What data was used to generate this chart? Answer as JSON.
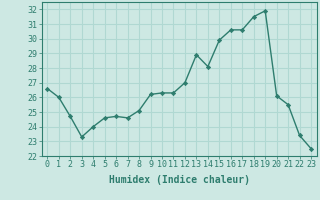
{
  "x": [
    0,
    1,
    2,
    3,
    4,
    5,
    6,
    7,
    8,
    9,
    10,
    11,
    12,
    13,
    14,
    15,
    16,
    17,
    18,
    19,
    20,
    21,
    22,
    23
  ],
  "y": [
    26.6,
    26.0,
    24.7,
    23.3,
    24.0,
    24.6,
    24.7,
    24.6,
    25.1,
    26.2,
    26.3,
    26.3,
    27.0,
    28.9,
    28.1,
    29.9,
    30.6,
    30.6,
    31.5,
    31.9,
    26.1,
    25.5,
    23.4,
    22.5
  ],
  "line_color": "#2e7d6e",
  "bg_color": "#cde8e3",
  "grid_color": "#b0d8d2",
  "xlabel": "Humidex (Indice chaleur)",
  "ylim": [
    22,
    32.5
  ],
  "xlim": [
    -0.5,
    23.5
  ],
  "yticks": [
    22,
    23,
    24,
    25,
    26,
    27,
    28,
    29,
    30,
    31,
    32
  ],
  "xticks": [
    0,
    1,
    2,
    3,
    4,
    5,
    6,
    7,
    8,
    9,
    10,
    11,
    12,
    13,
    14,
    15,
    16,
    17,
    18,
    19,
    20,
    21,
    22,
    23
  ],
  "tick_color": "#2e7d6e",
  "label_fontsize": 7.0,
  "tick_fontsize": 6.0
}
